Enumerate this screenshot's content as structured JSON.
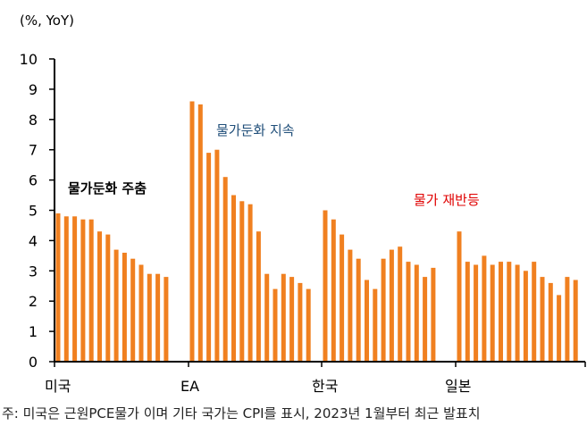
{
  "chart_data": {
    "type": "bar",
    "ylabel": "(%, YoY)",
    "ylim": [
      0,
      10
    ],
    "yticks": [
      "0",
      "1",
      "2",
      "3",
      "4",
      "5",
      "6",
      "7",
      "8",
      "9",
      "10"
    ],
    "bar_color": "#f08020",
    "groups": [
      {
        "label": "미국",
        "values": [
          4.9,
          4.8,
          4.8,
          4.7,
          4.7,
          4.3,
          4.2,
          3.7,
          3.6,
          3.4,
          3.2,
          2.9,
          2.9,
          2.8
        ]
      },
      {
        "label": "EA",
        "values": [
          8.6,
          8.5,
          6.9,
          7.0,
          6.1,
          5.5,
          5.3,
          5.2,
          4.3,
          2.9,
          2.4,
          2.9,
          2.8,
          2.6,
          2.4
        ]
      },
      {
        "label": "한국",
        "values": [
          5.0,
          4.7,
          4.2,
          3.7,
          3.4,
          2.7,
          2.4,
          3.4,
          3.7,
          3.8,
          3.3,
          3.2,
          2.8,
          3.1
        ]
      },
      {
        "label": "일본",
        "values": [
          4.3,
          3.3,
          3.2,
          3.5,
          3.2,
          3.3,
          3.3,
          3.2,
          3.0,
          3.3,
          2.8,
          2.6,
          2.2,
          2.8,
          2.7
        ]
      }
    ],
    "annotations": [
      {
        "text": "물가둔화 주춤",
        "color": "#000000"
      },
      {
        "text": "물가둔화 지속",
        "color": "#1f4e79"
      },
      {
        "text": "물가 재반등",
        "color": "#e00000"
      }
    ]
  },
  "footnote": "주: 미국은 근원PCE물가 이며 기타 국가는 CPI를 표시, 2023년 1월부터 최근 발표치"
}
